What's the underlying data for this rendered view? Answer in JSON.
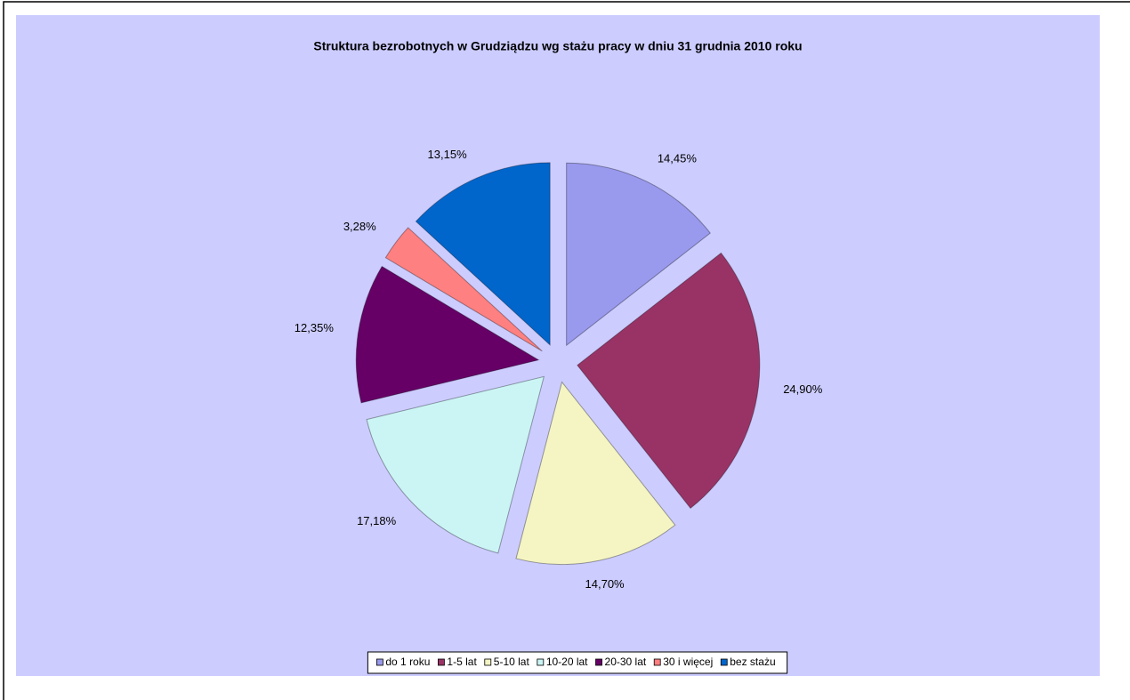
{
  "chart_data": {
    "type": "pie",
    "title": "Struktura bezrobotnych w Grudziądzu wg stażu pracy w dniu 31 grudnia 2010 roku",
    "categories": [
      "do 1 roku",
      "1-5 lat",
      "5-10 lat",
      "10-20 lat",
      "20-30 lat",
      "30 i więcej",
      "bez stażu"
    ],
    "values": [
      14.45,
      24.9,
      14.7,
      17.18,
      12.35,
      3.28,
      13.15
    ],
    "value_labels": [
      "14,45%",
      "24,90%",
      "14,70%",
      "17,18%",
      "12,35%",
      "3,28%",
      "13,15%"
    ],
    "colors": [
      "#9999ee",
      "#993366",
      "#f5f5c4",
      "#cbf5f5",
      "#660066",
      "#ff8080",
      "#0066cc"
    ],
    "legend": "bottom"
  }
}
